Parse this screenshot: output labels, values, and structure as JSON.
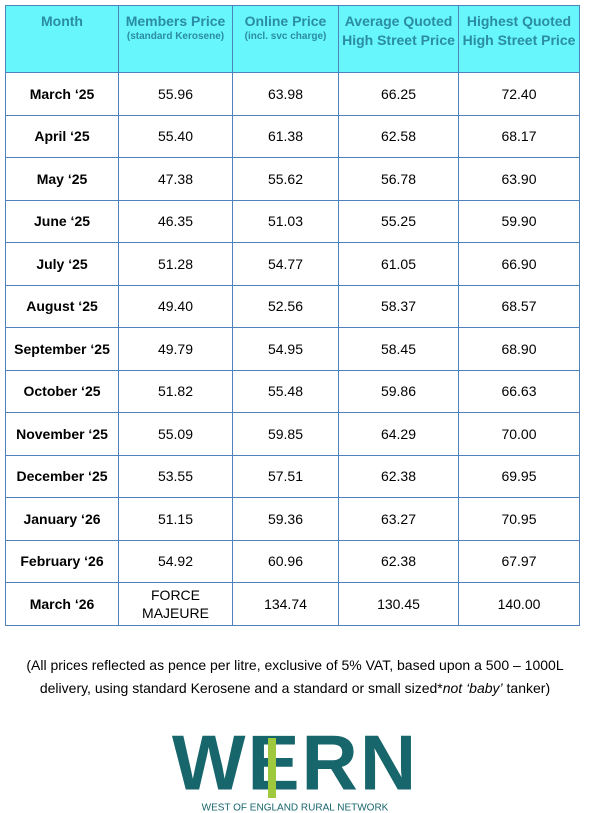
{
  "table": {
    "header": [
      {
        "title": "Month"
      },
      {
        "title": "Members Price",
        "note": "(standard Kerosene)"
      },
      {
        "title": "Online Price",
        "note": "(incl. svc charge)"
      },
      {
        "title": "Average Quoted High Street Price"
      },
      {
        "title": "Highest Quoted High Street Price"
      }
    ],
    "rows": [
      [
        "March ‘25",
        "55.96",
        "63.98",
        "66.25",
        "72.40"
      ],
      [
        "April ‘25",
        "55.40",
        "61.38",
        "62.58",
        "68.17"
      ],
      [
        "May ‘25",
        "47.38",
        "55.62",
        "56.78",
        "63.90"
      ],
      [
        "June ‘25",
        "46.35",
        "51.03",
        "55.25",
        "59.90"
      ],
      [
        "July ‘25",
        "51.28",
        "54.77",
        "61.05",
        "66.90"
      ],
      [
        "August ‘25",
        "49.40",
        "52.56",
        "58.37",
        "68.57"
      ],
      [
        "September ‘25",
        "49.79",
        "54.95",
        "58.45",
        "68.90"
      ],
      [
        "October ‘25",
        "51.82",
        "55.48",
        "59.86",
        "66.63"
      ],
      [
        "November ‘25",
        "55.09",
        "59.85",
        "64.29",
        "70.00"
      ],
      [
        "December ‘25",
        "53.55",
        "57.51",
        "62.38",
        "69.95"
      ],
      [
        "January ‘26",
        "51.15",
        "59.36",
        "63.27",
        "70.95"
      ],
      [
        "February ‘26",
        "54.92",
        "60.96",
        "62.38",
        "67.97"
      ],
      [
        "March ‘26",
        "FORCE MAJEURE",
        "134.74",
        "130.45",
        "140.00"
      ]
    ]
  },
  "footnote": {
    "line1": "(All prices reflected as pence per litre, exclusive of 5% VAT, based upon a 500 – 1000L",
    "line2a": "delivery, using standard Kerosene and a standard or small sized*",
    "line2b": "not ‘baby’",
    "line2c": " tanker)"
  },
  "logo": {
    "text": "WERN",
    "tagline": "WEST OF ENGLAND RURAL NETWORK"
  }
}
